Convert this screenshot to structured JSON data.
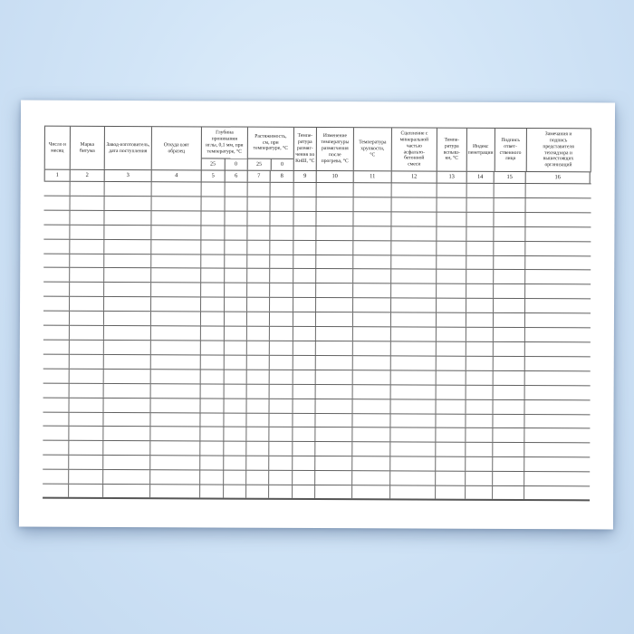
{
  "background": {
    "color_center": "#e2f0fc",
    "color_edge": "#c3d9f0"
  },
  "paper": {
    "color": "#ffffff"
  },
  "table": {
    "border_color": "#565656",
    "header": {
      "col_1": "Число и\nмесяц",
      "col_2": "Марка\nбитума",
      "col_3": "Завод-изготовитель,\nдата поступления",
      "col_4": "Откуда взят\nобразец",
      "group_5_6": "Глубина\nпроникания\nиглы, 0,1 мм, при\nтемпературе, °С",
      "sub_5": "25",
      "sub_6": "0",
      "group_7_8": "Растяжимость,\nсм, при\nтемпературе, °С",
      "sub_7": "25",
      "sub_8": "0",
      "col_9": "Темпе-\nратура\nразмяг-\nчения по\nКиШ, °С",
      "col_10": "Изменение\nтемпературы\nразмягчения\nпосле\nпрогрева, °С",
      "col_11": "Температура\nхрупкости,\n°С",
      "col_12": "Сцепление с\nминеральной\nчастью\nасфальто-\nбетонной\nсмеси",
      "col_13": "Темпе-\nратура\nвспыш-\nки, °С",
      "col_14": "Индекс\nпенетрации",
      "col_15": "Подпись\nответ-\nственного\nлица",
      "col_16": "Замечания и\nподпись\nпредставителя\nтехнадзора и\nвышестоящих\nорганизаций"
    },
    "column_numbers": [
      "1",
      "2",
      "3",
      "4",
      "5",
      "6",
      "7",
      "8",
      "9",
      "10",
      "11",
      "12",
      "13",
      "14",
      "15",
      "16"
    ],
    "body": {
      "row_count": 22,
      "columns_per_row": 16,
      "values": []
    }
  }
}
